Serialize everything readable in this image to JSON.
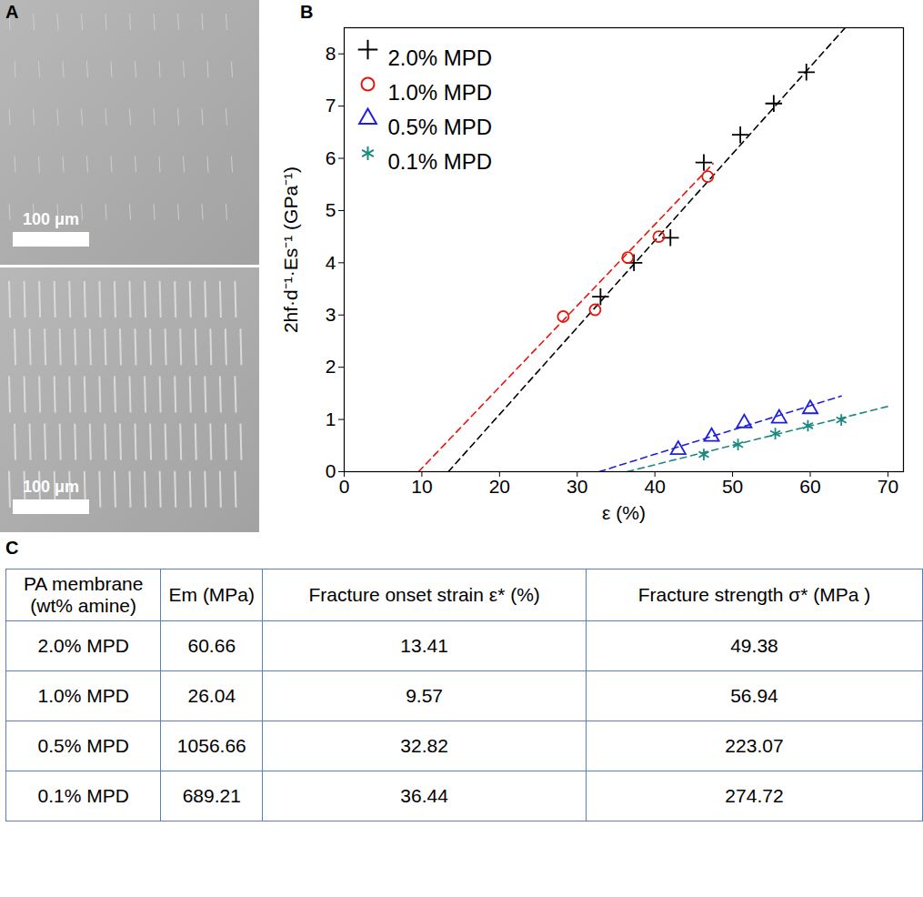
{
  "panel_labels": {
    "a": "A",
    "b": "B",
    "c": "C"
  },
  "panel_a": {
    "images": [
      {
        "scale_bar": "100 μm"
      },
      {
        "scale_bar": "100 μm"
      }
    ]
  },
  "chart_data": {
    "type": "scatter",
    "x_label": "ε (%)",
    "y_label": "2hf·d⁻¹·Es⁻¹ (GPa⁻¹)",
    "xlim": [
      0,
      72
    ],
    "xticks": [
      0,
      10,
      20,
      30,
      40,
      50,
      60,
      70
    ],
    "ylim": [
      0,
      8.5
    ],
    "yticks": [
      0,
      1,
      2,
      3,
      4,
      5,
      6,
      7,
      8
    ],
    "legend": "upper left",
    "series": [
      {
        "name": "2.0% MPD",
        "color": "#000000",
        "marker": "plus",
        "line_style": "dashed",
        "x": [
          33,
          37.3,
          42,
          46.3,
          51,
          55.3,
          59.5
        ],
        "values": [
          3.35,
          4.0,
          4.48,
          5.92,
          6.45,
          7.05,
          7.65
        ],
        "fit": {
          "x": [
            13.41,
            66
          ],
          "values": [
            0,
            8.75
          ]
        }
      },
      {
        "name": "1.0% MPD",
        "color": "#e8160c",
        "marker": "circle",
        "line_style": "dashed",
        "x": [
          28.2,
          32.3,
          36.5,
          40.5,
          46.8
        ],
        "values": [
          2.97,
          3.1,
          4.1,
          4.5,
          5.65
        ],
        "fit": {
          "x": [
            9.57,
            47.5
          ],
          "values": [
            0,
            5.9
          ]
        }
      },
      {
        "name": "0.5% MPD",
        "color": "#1f1fe0",
        "marker": "triangle",
        "line_style": "dashed",
        "x": [
          43,
          47.3,
          51.5,
          56,
          60
        ],
        "values": [
          0.42,
          0.67,
          0.93,
          1.02,
          1.2
        ],
        "fit": {
          "x": [
            32.82,
            64
          ],
          "values": [
            0,
            1.45
          ]
        }
      },
      {
        "name": "0.1% MPD",
        "color": "#1a8a80",
        "marker": "asterisk",
        "line_style": "dashed",
        "x": [
          46.3,
          50.7,
          55.5,
          59.7,
          64
        ],
        "values": [
          0.33,
          0.52,
          0.73,
          0.88,
          0.99
        ],
        "fit": {
          "x": [
            36.44,
            70
          ],
          "values": [
            0,
            1.25
          ]
        }
      }
    ]
  },
  "table": {
    "header": [
      "PA membrane (wt% amine)",
      "Em (MPa)",
      "Fracture onset strain ε* (%)",
      "Fracture strength σ* (MPa )"
    ],
    "rows": [
      [
        "2.0% MPD",
        "60.66",
        "13.41",
        "49.38"
      ],
      [
        "1.0% MPD",
        "26.04",
        "9.57",
        "56.94"
      ],
      [
        "0.5% MPD",
        "1056.66",
        "32.82",
        "223.07"
      ],
      [
        "0.1% MPD",
        "689.21",
        "36.44",
        "274.72"
      ]
    ]
  }
}
